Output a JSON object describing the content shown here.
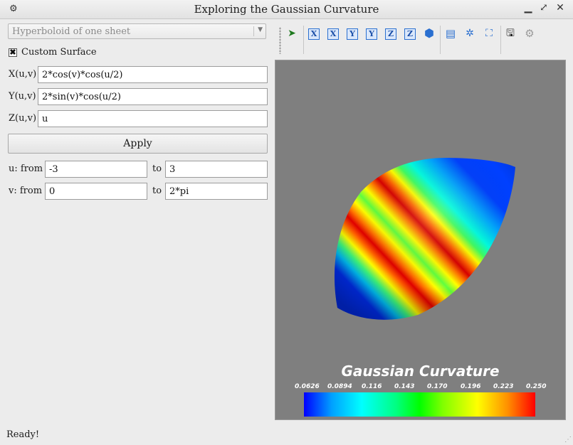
{
  "window": {
    "title": "Exploring the Gaussian Curvature",
    "buttons": {
      "minimize": "▁",
      "maximize": "⤢",
      "close": "✕"
    },
    "system_icon": "⚙"
  },
  "surface_select": {
    "value": "Hyperboloid of one sheet",
    "arrow": "▼"
  },
  "custom_surface": {
    "label": "Custom Surface",
    "checked": true,
    "check_glyph": "✖"
  },
  "equations": {
    "x_label": "X(u,v)",
    "x_value": "2*cos(v)*cos(u/2)",
    "y_label": "Y(u,v)",
    "y_value": "2*sin(v)*cos(u/2)",
    "z_label": "Z(u,v)",
    "z_value": "u"
  },
  "apply_label": "Apply",
  "ranges": {
    "u_label": "u: from",
    "u_from": "-3",
    "u_to_label": "to",
    "u_to": "3",
    "v_label": "v: from",
    "v_from": "0",
    "v_to_label": "to",
    "v_to": "2*pi"
  },
  "toolbar": {
    "buttons": [
      {
        "name": "select-tool-icon",
        "glyph": "➤"
      },
      {
        "name": "view-x-plus-icon",
        "glyph": "X"
      },
      {
        "name": "view-x-minus-icon",
        "glyph": "X"
      },
      {
        "name": "view-y-plus-icon",
        "glyph": "Y"
      },
      {
        "name": "view-y-minus-icon",
        "glyph": "Y"
      },
      {
        "name": "view-z-plus-icon",
        "glyph": "Z"
      },
      {
        "name": "view-z-minus-icon",
        "glyph": "Z"
      },
      {
        "name": "isometric-view-icon",
        "glyph": "⬢"
      },
      {
        "name": "split-view-icon",
        "glyph": "▤"
      },
      {
        "name": "axes-icon",
        "glyph": "✲"
      },
      {
        "name": "fit-view-icon",
        "glyph": "⛶"
      },
      {
        "name": "save-icon",
        "glyph": "🖫"
      },
      {
        "name": "settings-gear-icon",
        "glyph": "⚙"
      }
    ]
  },
  "colorbar": {
    "title": "Gaussian Curvature",
    "ticks": [
      "0.0626",
      "0.0894",
      "0.116",
      "0.143",
      "0.170",
      "0.196",
      "0.223",
      "0.250"
    ],
    "colors": {
      "low": "#0000ff",
      "mid": "#00ff00",
      "high": "#ff0000"
    }
  },
  "status": "Ready!"
}
